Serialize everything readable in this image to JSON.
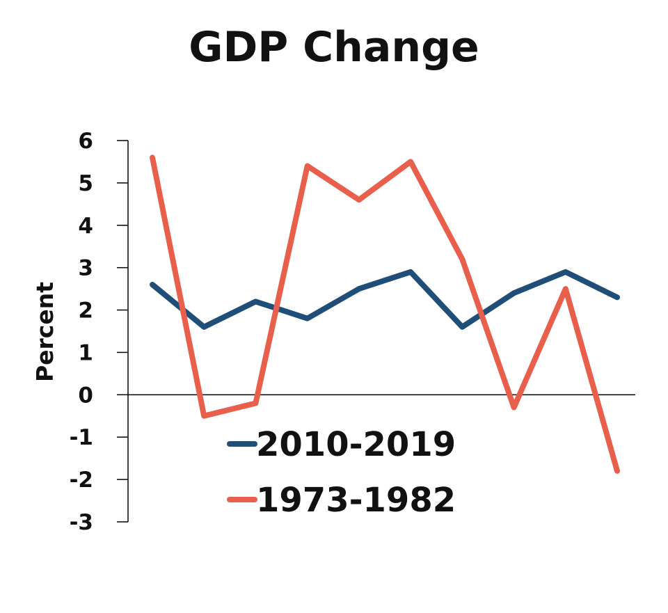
{
  "chart_data": {
    "type": "line",
    "title": "GDP Change",
    "xlabel": "",
    "ylabel": "Percent",
    "ylim": [
      -3,
      6
    ],
    "yticks": [
      6,
      5,
      4,
      3,
      2,
      1,
      0,
      -1,
      -2,
      -3
    ],
    "ytick_labels": [
      "6",
      "5",
      "4",
      "3",
      "2",
      "1",
      "0",
      "-1",
      "-2",
      "-3"
    ],
    "x": [
      1,
      2,
      3,
      4,
      5,
      6,
      7,
      8,
      9,
      10
    ],
    "series": [
      {
        "name": "2010-2019",
        "color": "#1f4e79",
        "values": [
          2.6,
          1.6,
          2.2,
          1.8,
          2.5,
          2.9,
          1.6,
          2.4,
          2.9,
          2.3
        ]
      },
      {
        "name": "1973-1982",
        "color": "#e8604c",
        "values": [
          5.6,
          -0.5,
          -0.2,
          5.4,
          4.6,
          5.5,
          3.2,
          -0.3,
          2.5,
          -1.8
        ]
      }
    ],
    "legend": "lower-center",
    "grid": false
  }
}
